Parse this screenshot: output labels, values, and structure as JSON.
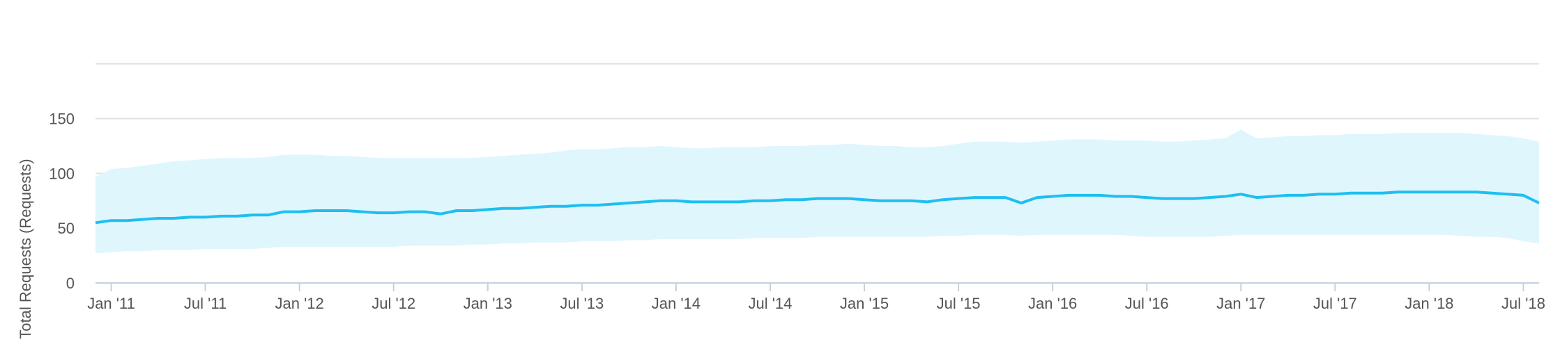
{
  "chart_data": {
    "type": "line",
    "title": "",
    "xlabel": "",
    "ylabel": "Total Requests (Requests)",
    "ylim": [
      0,
      200
    ],
    "yticks": [
      "0",
      "50",
      "100",
      "150"
    ],
    "xticks": [
      "Jan '11",
      "Jul '11",
      "Jan '12",
      "Jul '12",
      "Jan '13",
      "Jul '13",
      "Jan '14",
      "Jul '14",
      "Jan '15",
      "Jul '15",
      "Jan '16",
      "Jul '16",
      "Jan '17",
      "Jul '17",
      "Jan '18",
      "Jul '18"
    ],
    "x": [
      "2010-12",
      "2011-01",
      "2011-02",
      "2011-03",
      "2011-04",
      "2011-05",
      "2011-06",
      "2011-07",
      "2011-08",
      "2011-09",
      "2011-10",
      "2011-11",
      "2011-12",
      "2012-01",
      "2012-02",
      "2012-03",
      "2012-04",
      "2012-05",
      "2012-06",
      "2012-07",
      "2012-08",
      "2012-09",
      "2012-10",
      "2012-11",
      "2012-12",
      "2013-01",
      "2013-02",
      "2013-03",
      "2013-04",
      "2013-05",
      "2013-06",
      "2013-07",
      "2013-08",
      "2013-09",
      "2013-10",
      "2013-11",
      "2013-12",
      "2014-01",
      "2014-02",
      "2014-03",
      "2014-04",
      "2014-05",
      "2014-06",
      "2014-07",
      "2014-08",
      "2014-09",
      "2014-10",
      "2014-11",
      "2014-12",
      "2015-01",
      "2015-02",
      "2015-03",
      "2015-04",
      "2015-05",
      "2015-06",
      "2015-07",
      "2015-08",
      "2015-09",
      "2015-10",
      "2015-11",
      "2015-12",
      "2016-01",
      "2016-02",
      "2016-03",
      "2016-04",
      "2016-05",
      "2016-06",
      "2016-07",
      "2016-08",
      "2016-09",
      "2016-10",
      "2016-11",
      "2016-12",
      "2017-01",
      "2017-02",
      "2017-03",
      "2017-04",
      "2017-05",
      "2017-06",
      "2017-07",
      "2017-08",
      "2017-09",
      "2017-10",
      "2017-11",
      "2017-12",
      "2018-01",
      "2018-02",
      "2018-03",
      "2018-04",
      "2018-05",
      "2018-06",
      "2018-07",
      "2018-08"
    ],
    "series": [
      {
        "values": [
          55,
          57,
          57,
          58,
          59,
          59,
          60,
          60,
          61,
          61,
          62,
          62,
          65,
          65,
          66,
          66,
          66,
          65,
          64,
          64,
          65,
          65,
          63,
          66,
          66,
          67,
          68,
          68,
          69,
          70,
          70,
          71,
          71,
          72,
          73,
          74,
          75,
          75,
          74,
          74,
          74,
          74,
          75,
          75,
          76,
          76,
          77,
          77,
          77,
          76,
          75,
          75,
          75,
          74,
          76,
          77,
          78,
          78,
          78,
          73,
          78,
          79,
          80,
          80,
          80,
          79,
          79,
          78,
          77,
          77,
          77,
          78,
          79,
          81,
          78,
          79,
          80,
          80,
          81,
          81,
          82,
          82,
          82,
          83,
          83,
          83,
          83,
          83,
          83,
          82,
          81,
          80,
          73
        ]
      },
      {
        "name": "band_upper",
        "values": [
          97,
          104,
          105,
          107,
          109,
          111,
          112,
          113,
          114,
          114,
          114,
          115,
          117,
          117,
          117,
          116,
          116,
          115,
          114,
          114,
          114,
          114,
          114,
          114,
          114,
          115,
          116,
          117,
          118,
          119,
          121,
          122,
          122,
          123,
          124,
          124,
          125,
          124,
          123,
          123,
          124,
          124,
          124,
          125,
          125,
          125,
          126,
          126,
          127,
          126,
          125,
          125,
          124,
          124,
          125,
          127,
          129,
          129,
          129,
          128,
          129,
          130,
          131,
          131,
          131,
          130,
          130,
          130,
          129,
          129,
          130,
          131,
          132,
          140,
          132,
          133,
          134,
          134,
          135,
          135,
          136,
          136,
          136,
          137,
          137,
          137,
          137,
          137,
          136,
          135,
          134,
          132,
          129
        ]
      },
      {
        "name": "band_lower",
        "values": [
          27,
          28,
          29,
          29,
          30,
          30,
          30,
          31,
          31,
          31,
          31,
          32,
          33,
          33,
          33,
          33,
          33,
          33,
          33,
          33,
          34,
          34,
          34,
          34,
          35,
          35,
          36,
          36,
          37,
          37,
          37,
          38,
          38,
          38,
          39,
          39,
          40,
          40,
          40,
          40,
          40,
          40,
          41,
          41,
          41,
          41,
          42,
          42,
          42,
          42,
          42,
          42,
          42,
          42,
          43,
          43,
          44,
          44,
          44,
          43,
          44,
          44,
          44,
          44,
          44,
          44,
          43,
          42,
          42,
          42,
          42,
          42,
          43,
          44,
          44,
          44,
          44,
          44,
          44,
          44,
          44,
          44,
          44,
          44,
          44,
          44,
          44,
          43,
          42,
          42,
          41,
          38,
          36
        ]
      }
    ],
    "colors": {
      "line": "#1ebff0",
      "band": "#e0f6fd",
      "grid": "#dfe3e8",
      "axis": "#c5d0e0",
      "text": "#555555"
    },
    "grid": true,
    "legend": "none"
  }
}
